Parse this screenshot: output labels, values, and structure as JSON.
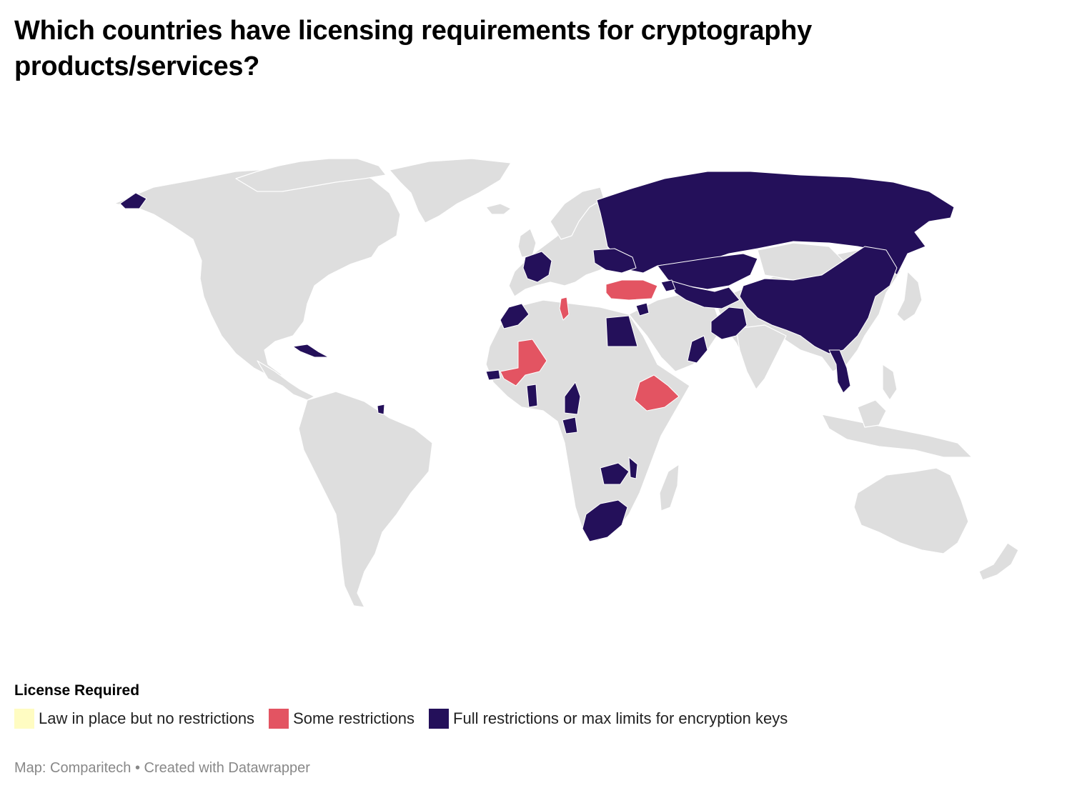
{
  "title": "Which countries have licensing requirements for cryptography products/services?",
  "legend": {
    "title": "License Required",
    "items": [
      {
        "label": "Law in place but no restrictions",
        "color": "#fffcc2"
      },
      {
        "label": "Some restrictions",
        "color": "#e35462"
      },
      {
        "label": "Full restrictions or max limits for encryption keys",
        "color": "#24105a"
      }
    ]
  },
  "footer": {
    "source": "Map: Comparitech",
    "separator": "•",
    "credit": "Created with Datawrapper"
  },
  "map": {
    "base_color": "#dedede",
    "full_restrictions": [
      "Russia",
      "China",
      "Kazakhstan",
      "Uzbekistan",
      "Turkmenistan",
      "Kyrgyzstan",
      "Tajikistan",
      "Belarus",
      "Ukraine",
      "Azerbaijan",
      "France",
      "Morocco",
      "Egypt",
      "Syria",
      "Pakistan",
      "Oman",
      "Vietnam",
      "Cuba",
      "Senegal",
      "Ghana",
      "Cameroon",
      "Gabon",
      "Zambia",
      "Malawi",
      "South Africa",
      "French Guiana",
      "Alaska"
    ],
    "some_restrictions": [
      "Turkey",
      "Tunisia",
      "Mali",
      "Ethiopia"
    ]
  }
}
